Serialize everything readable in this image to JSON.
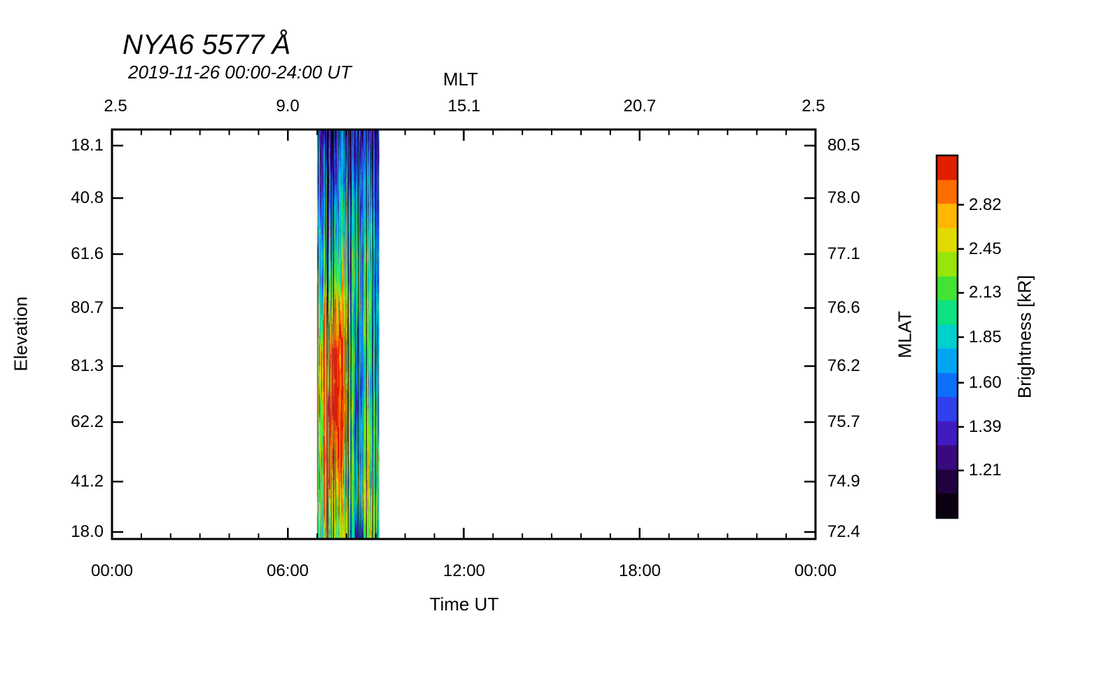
{
  "title": "NYA6 5577 Å",
  "subtitle": "2019-11-26 00:00-24:00 UT",
  "axes": {
    "top": {
      "label": "MLT",
      "ticks": [
        "2.5",
        "9.0",
        "15.1",
        "20.7",
        "2.5"
      ]
    },
    "bottom": {
      "label": "Time UT",
      "ticks": [
        "00:00",
        "06:00",
        "12:00",
        "18:00",
        "00:00"
      ]
    },
    "left": {
      "label": "Elevation",
      "ticks": [
        "18.1",
        "40.8",
        "61.6",
        "80.7",
        "81.3",
        "62.2",
        "41.2",
        "18.0"
      ]
    },
    "right": {
      "label": "MLAT",
      "ticks": [
        "80.5",
        "78.0",
        "77.1",
        "76.6",
        "76.2",
        "75.7",
        "74.9",
        "72.4"
      ]
    }
  },
  "colorbar": {
    "label": "Brightness [kR]",
    "ticks": [
      "2.82",
      "2.45",
      "2.13",
      "1.85",
      "1.60",
      "1.39",
      "1.21"
    ]
  },
  "chart_data": {
    "type": "heatmap",
    "title": "NYA6 5577 Å",
    "subtitle": "2019-11-26 00:00-24:00 UT",
    "station": "NYA6",
    "wavelength_angstrom": 5577,
    "date_ut": "2019-11-26",
    "xlabel": "Time UT",
    "x_range_hours": [
      0,
      24
    ],
    "x_ticks_ut": [
      "00:00",
      "06:00",
      "12:00",
      "18:00",
      "00:00"
    ],
    "mlt_ticks": [
      2.5,
      9.0,
      15.1,
      20.7,
      2.5
    ],
    "elevation_ticks": [
      18.1,
      40.8,
      61.6,
      80.7,
      81.3,
      62.2,
      41.2,
      18.0
    ],
    "mlat_ticks": [
      80.5,
      78.0,
      77.1,
      76.6,
      76.2,
      75.7,
      74.9,
      72.4
    ],
    "brightness_scale_kR": {
      "type": "log",
      "min": 1.04,
      "max": 3.3,
      "ticks": [
        2.82,
        2.45,
        2.13,
        1.85,
        1.6,
        1.39,
        1.21
      ],
      "colormap": "black-purple-blue-cyan-green-yellow-orange-red"
    },
    "background_kR": null,
    "emission_band": {
      "description": "Single auroral emission interval; vertical streaked structure. Rows run from top of plot (elevation 18.1, MLAT 80.5) to bottom (elevation 18.0, MLAT 72.4). Values in kR.",
      "t_start_ut": 7.0,
      "t_end_ut": 9.1,
      "columns": [
        {
          "t_ut": 7.05,
          "values_kR": [
            1.25,
            1.4,
            1.55,
            1.65,
            1.75,
            2.0,
            2.3,
            2.5,
            2.4,
            2.2,
            2.1,
            2.0
          ]
        },
        {
          "t_ut": 7.3,
          "values_kR": [
            1.2,
            1.35,
            1.5,
            1.65,
            1.85,
            2.4,
            2.9,
            3.05,
            2.9,
            2.6,
            2.3,
            2.15
          ]
        },
        {
          "t_ut": 7.5,
          "values_kR": [
            1.15,
            1.3,
            1.5,
            1.7,
            1.95,
            2.6,
            3.05,
            3.1,
            3.0,
            2.7,
            2.45,
            2.2
          ]
        },
        {
          "t_ut": 7.7,
          "values_kR": [
            1.2,
            1.35,
            1.55,
            1.7,
            1.9,
            2.45,
            2.9,
            3.0,
            2.85,
            2.55,
            2.3,
            2.1
          ]
        },
        {
          "t_ut": 7.95,
          "values_kR": [
            1.25,
            1.4,
            1.6,
            1.75,
            1.9,
            2.2,
            2.5,
            2.55,
            2.4,
            2.25,
            2.1,
            2.05
          ]
        },
        {
          "t_ut": 8.15,
          "values_kR": [
            1.2,
            1.4,
            1.6,
            1.7,
            1.8,
            1.9,
            2.0,
            1.95,
            1.85,
            1.9,
            2.0,
            1.95
          ]
        },
        {
          "t_ut": 8.3,
          "values_kR": [
            1.1,
            1.2,
            1.35,
            1.45,
            1.5,
            1.45,
            1.35,
            1.25,
            1.3,
            1.45,
            1.55,
            1.1
          ]
        },
        {
          "t_ut": 8.5,
          "values_kR": [
            1.1,
            1.18,
            1.32,
            1.5,
            1.6,
            1.55,
            1.45,
            1.35,
            1.45,
            1.55,
            1.65,
            1.05
          ]
        },
        {
          "t_ut": 8.75,
          "values_kR": [
            1.2,
            1.35,
            1.55,
            1.7,
            1.8,
            1.9,
            1.85,
            1.9,
            2.0,
            2.1,
            2.2,
            2.1
          ]
        },
        {
          "t_ut": 9.05,
          "values_kR": [
            1.18,
            1.3,
            1.45,
            1.55,
            1.6,
            1.55,
            1.5,
            1.6,
            1.7,
            1.85,
            1.95,
            1.8
          ]
        }
      ]
    }
  }
}
